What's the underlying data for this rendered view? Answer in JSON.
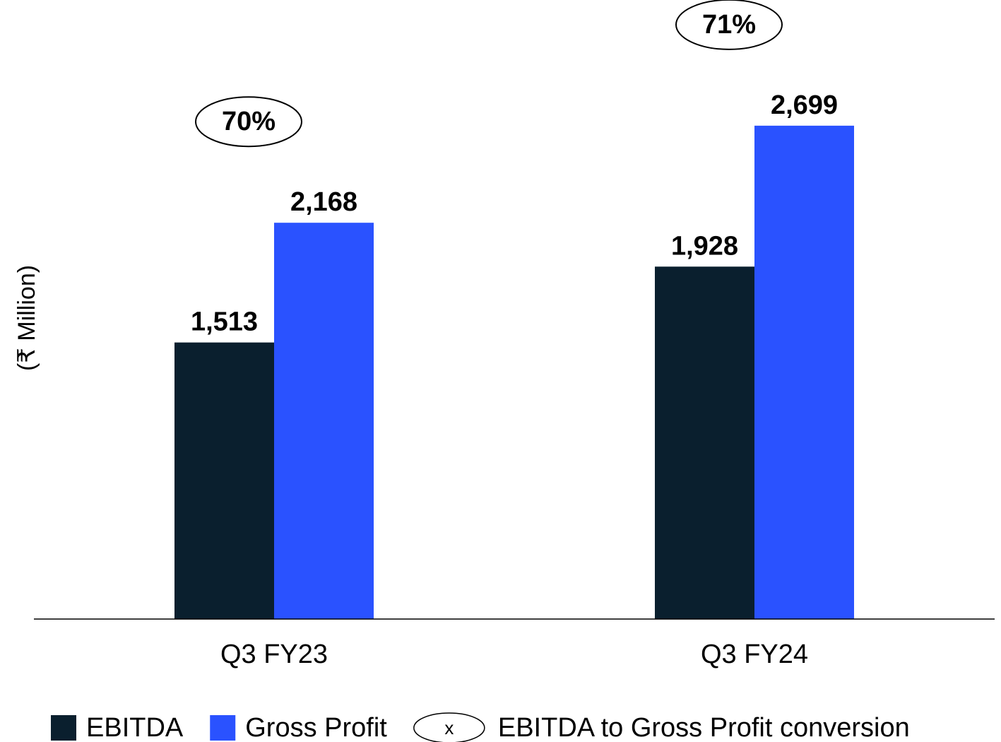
{
  "chart_data": {
    "type": "bar",
    "y_label": "(₹ Million)",
    "categories": [
      "Q3 FY23",
      "Q3 FY24"
    ],
    "series": [
      {
        "name": "EBITDA",
        "color": "#0a1f2e",
        "values": [
          1513,
          1928
        ],
        "value_labels": [
          "1,513",
          "1,928"
        ]
      },
      {
        "name": "Gross Profit",
        "color": "#2a52ff",
        "values": [
          2168,
          2699
        ],
        "value_labels": [
          "2,168",
          "2,699"
        ]
      }
    ],
    "conversion": {
      "name": "EBITDA to Gross Profit conversion",
      "symbol": "x",
      "values": [
        70,
        71
      ],
      "value_labels": [
        "70%",
        "71%"
      ]
    },
    "ylim": [
      0,
      3000
    ],
    "grid": false,
    "legend": "bottom"
  }
}
